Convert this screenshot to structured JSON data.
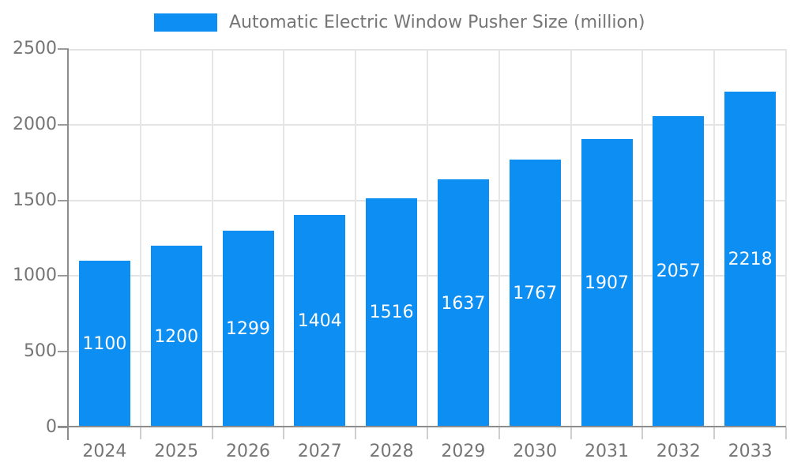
{
  "chart_data": {
    "type": "bar",
    "title": "Automatic Electric Window Pusher Size (million)",
    "legend_position": "top",
    "categories": [
      "2024",
      "2025",
      "2026",
      "2027",
      "2028",
      "2029",
      "2030",
      "2031",
      "2032",
      "2033"
    ],
    "values": [
      1100,
      1200,
      1299,
      1404,
      1516,
      1637,
      1767,
      1907,
      2057,
      2218
    ],
    "xlabel": "",
    "ylabel": "",
    "ylim": [
      0,
      2500
    ],
    "yticks": [
      0,
      500,
      1000,
      1500,
      2000,
      2500
    ],
    "grid": true,
    "bar_color": "#0d8ef2",
    "value_label_color": "#ffffff",
    "axis_text_color": "#757575",
    "grid_color": "#e3e3e3",
    "axis_line_color": "#8c8c8c"
  }
}
